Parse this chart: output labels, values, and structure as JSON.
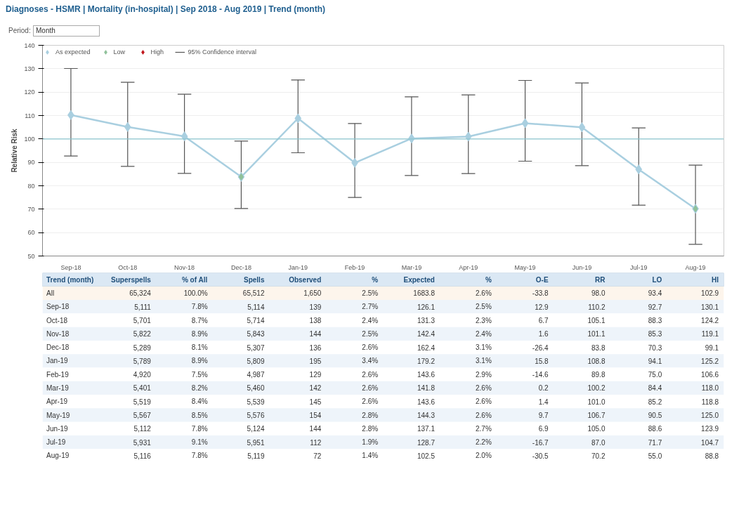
{
  "chart_data": [
    {
      "type": "line",
      "title": "Diagnoses - HSMR | Mortality (in-hospital) | Sep 2018 - Aug 2019 | Trend (month)",
      "ylabel": "Relative Risk",
      "annotations": [
        "Period:",
        "Month",
        "95% Confidence interval"
      ],
      "categories": [
        "Sep-18",
        "Oct-18",
        "Nov-18",
        "Dec-18",
        "Jan-19",
        "Feb-19",
        "Mar-19",
        "Apr-19",
        "May-19",
        "Jun-19",
        "Jul-19",
        "Aug-19"
      ],
      "series": [
        {
          "name": "As expected",
          "type": "line",
          "color": "#a9cfe0",
          "values": [
            110.2,
            105.1,
            101.1,
            83.8,
            108.8,
            89.8,
            100.2,
            101.0,
            106.7,
            105.0,
            87.0,
            70.2
          ],
          "errors": [
            [
              92.7,
              130.1
            ],
            [
              88.3,
              124.2
            ],
            [
              85.3,
              119.1
            ],
            [
              70.3,
              99.1
            ],
            [
              94.1,
              125.2
            ],
            [
              75.0,
              106.6
            ],
            [
              84.4,
              118.0
            ],
            [
              85.2,
              118.8
            ],
            [
              90.5,
              125.0
            ],
            [
              88.6,
              123.9
            ],
            [
              71.7,
              104.7
            ],
            [
              55.0,
              88.8
            ]
          ]
        },
        {
          "name": "Low",
          "type": "scatter",
          "color": "#8fc19a",
          "values": [
            null,
            null,
            null,
            83.8,
            null,
            null,
            null,
            null,
            null,
            null,
            null,
            70.2
          ]
        },
        {
          "name": "High",
          "type": "scatter",
          "color": "#c0141b",
          "values": [
            null,
            null,
            null,
            null,
            null,
            null,
            null,
            null,
            null,
            null,
            null,
            null
          ]
        }
      ],
      "ref_lines": [
        {
          "axis": "y",
          "value": 100,
          "color": "#8cc6cf"
        }
      ],
      "ylim": [
        50,
        140
      ],
      "yticks": [
        50,
        60,
        70,
        80,
        90,
        100,
        110,
        120,
        130,
        140
      ],
      "grid": "y",
      "legend": "top",
      "marker": "diamond",
      "line_style": "solid"
    },
    {
      "type": "other",
      "categories": [
        "Trend (month)",
        "Superspells",
        "% of All",
        "Spells",
        "Observed",
        "%",
        "Expected",
        "%",
        "O-E",
        "RR",
        "LO",
        "HI"
      ],
      "y_categories": [
        "All",
        "Sep-18",
        "Oct-18",
        "Nov-18",
        "Dec-18",
        "Jan-19",
        "Feb-19",
        "Mar-19",
        "Apr-19",
        "May-19",
        "Jun-19",
        "Jul-19",
        "Aug-19"
      ],
      "cell_labels": [
        [
          "65,324",
          "100.0%",
          "65,512",
          "1,650",
          "2.5%",
          "1683.8",
          "2.6%",
          "-33.8",
          "98.0",
          "93.4",
          "102.9"
        ],
        [
          "5,111",
          "7.8%",
          "5,114",
          "139",
          "2.7%",
          "126.1",
          "2.5%",
          "12.9",
          "110.2",
          "92.7",
          "130.1"
        ],
        [
          "5,701",
          "8.7%",
          "5,714",
          "138",
          "2.4%",
          "131.3",
          "2.3%",
          "6.7",
          "105.1",
          "88.3",
          "124.2"
        ],
        [
          "5,822",
          "8.9%",
          "5,843",
          "144",
          "2.5%",
          "142.4",
          "2.4%",
          "1.6",
          "101.1",
          "85.3",
          "119.1"
        ],
        [
          "5,289",
          "8.1%",
          "5,307",
          "136",
          "2.6%",
          "162.4",
          "3.1%",
          "-26.4",
          "83.8",
          "70.3",
          "99.1"
        ],
        [
          "5,789",
          "8.9%",
          "5,809",
          "195",
          "3.4%",
          "179.2",
          "3.1%",
          "15.8",
          "108.8",
          "94.1",
          "125.2"
        ],
        [
          "4,920",
          "7.5%",
          "4,987",
          "129",
          "2.6%",
          "143.6",
          "2.9%",
          "-14.6",
          "89.8",
          "75.0",
          "106.6"
        ],
        [
          "5,401",
          "8.2%",
          "5,460",
          "142",
          "2.6%",
          "141.8",
          "2.6%",
          "0.2",
          "100.2",
          "84.4",
          "118.0"
        ],
        [
          "5,519",
          "8.4%",
          "5,539",
          "145",
          "2.6%",
          "143.6",
          "2.6%",
          "1.4",
          "101.0",
          "85.2",
          "118.8"
        ],
        [
          "5,567",
          "8.5%",
          "5,576",
          "154",
          "2.8%",
          "144.3",
          "2.6%",
          "9.7",
          "106.7",
          "90.5",
          "125.0"
        ],
        [
          "5,112",
          "7.8%",
          "5,124",
          "144",
          "2.8%",
          "137.1",
          "2.7%",
          "6.9",
          "105.0",
          "88.6",
          "123.9"
        ],
        [
          "5,931",
          "9.1%",
          "5,951",
          "112",
          "1.9%",
          "128.7",
          "2.2%",
          "-16.7",
          "87.0",
          "71.7",
          "104.7"
        ],
        [
          "5,116",
          "7.8%",
          "5,119",
          "72",
          "1.4%",
          "102.5",
          "2.0%",
          "-30.5",
          "70.2",
          "55.0",
          "88.8"
        ]
      ]
    }
  ]
}
